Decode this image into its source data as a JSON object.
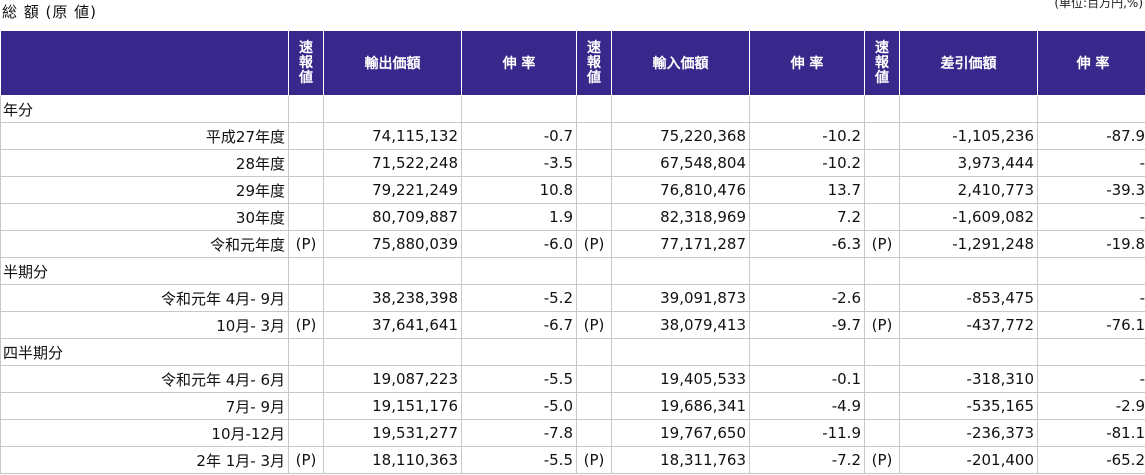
{
  "header": {
    "title": "総 額 (原 値)",
    "unit": "(単位:百万円,%)"
  },
  "columns": {
    "flag": [
      "速",
      "報",
      "値"
    ],
    "export_value": "輸出価額",
    "export_rate": "伸 率",
    "import_value": "輸入価額",
    "import_rate": "伸 率",
    "balance_value": "差引価額",
    "balance_rate": "伸 率"
  },
  "sections": [
    {
      "label": "年分",
      "rows": [
        {
          "label": "平成27年度",
          "f1": "",
          "export": "74,115,132",
          "export_rate": "-0.7",
          "f2": "",
          "import": "75,220,368",
          "import_rate": "-10.2",
          "f3": "",
          "balance": "-1,105,236",
          "balance_rate": "-87.9"
        },
        {
          "label": "28年度",
          "f1": "",
          "export": "71,522,248",
          "export_rate": "-3.5",
          "f2": "",
          "import": "67,548,804",
          "import_rate": "-10.2",
          "f3": "",
          "balance": "3,973,444",
          "balance_rate": "-"
        },
        {
          "label": "29年度",
          "f1": "",
          "export": "79,221,249",
          "export_rate": "10.8",
          "f2": "",
          "import": "76,810,476",
          "import_rate": "13.7",
          "f3": "",
          "balance": "2,410,773",
          "balance_rate": "-39.3"
        },
        {
          "label": "30年度",
          "f1": "",
          "export": "80,709,887",
          "export_rate": "1.9",
          "f2": "",
          "import": "82,318,969",
          "import_rate": "7.2",
          "f3": "",
          "balance": "-1,609,082",
          "balance_rate": "-"
        },
        {
          "label": "令和元年度",
          "f1": "(P)",
          "export": "75,880,039",
          "export_rate": "-6.0",
          "f2": "(P)",
          "import": "77,171,287",
          "import_rate": "-6.3",
          "f3": "(P)",
          "balance": "-1,291,248",
          "balance_rate": "-19.8"
        }
      ]
    },
    {
      "label": "半期分",
      "rows": [
        {
          "label": "令和元年 4月- 9月",
          "f1": "",
          "export": "38,238,398",
          "export_rate": "-5.2",
          "f2": "",
          "import": "39,091,873",
          "import_rate": "-2.6",
          "f3": "",
          "balance": "-853,475",
          "balance_rate": "-"
        },
        {
          "label": "10月- 3月",
          "f1": "(P)",
          "export": "37,641,641",
          "export_rate": "-6.7",
          "f2": "(P)",
          "import": "38,079,413",
          "import_rate": "-9.7",
          "f3": "(P)",
          "balance": "-437,772",
          "balance_rate": "-76.1"
        }
      ]
    },
    {
      "label": "四半期分",
      "rows": [
        {
          "label": "令和元年 4月- 6月",
          "f1": "",
          "export": "19,087,223",
          "export_rate": "-5.5",
          "f2": "",
          "import": "19,405,533",
          "import_rate": "-0.1",
          "f3": "",
          "balance": "-318,310",
          "balance_rate": "-"
        },
        {
          "label": "7月- 9月",
          "f1": "",
          "export": "19,151,176",
          "export_rate": "-5.0",
          "f2": "",
          "import": "19,686,341",
          "import_rate": "-4.9",
          "f3": "",
          "balance": "-535,165",
          "balance_rate": "-2.9"
        },
        {
          "label": "10月-12月",
          "f1": "",
          "export": "19,531,277",
          "export_rate": "-7.8",
          "f2": "",
          "import": "19,767,650",
          "import_rate": "-11.9",
          "f3": "",
          "balance": "-236,373",
          "balance_rate": "-81.1"
        },
        {
          "label": "2年 1月- 3月",
          "f1": "(P)",
          "export": "18,110,363",
          "export_rate": "-5.5",
          "f2": "(P)",
          "import": "18,311,763",
          "import_rate": "-7.2",
          "f3": "(P)",
          "balance": "-201,400",
          "balance_rate": "-65.2"
        }
      ]
    }
  ]
}
